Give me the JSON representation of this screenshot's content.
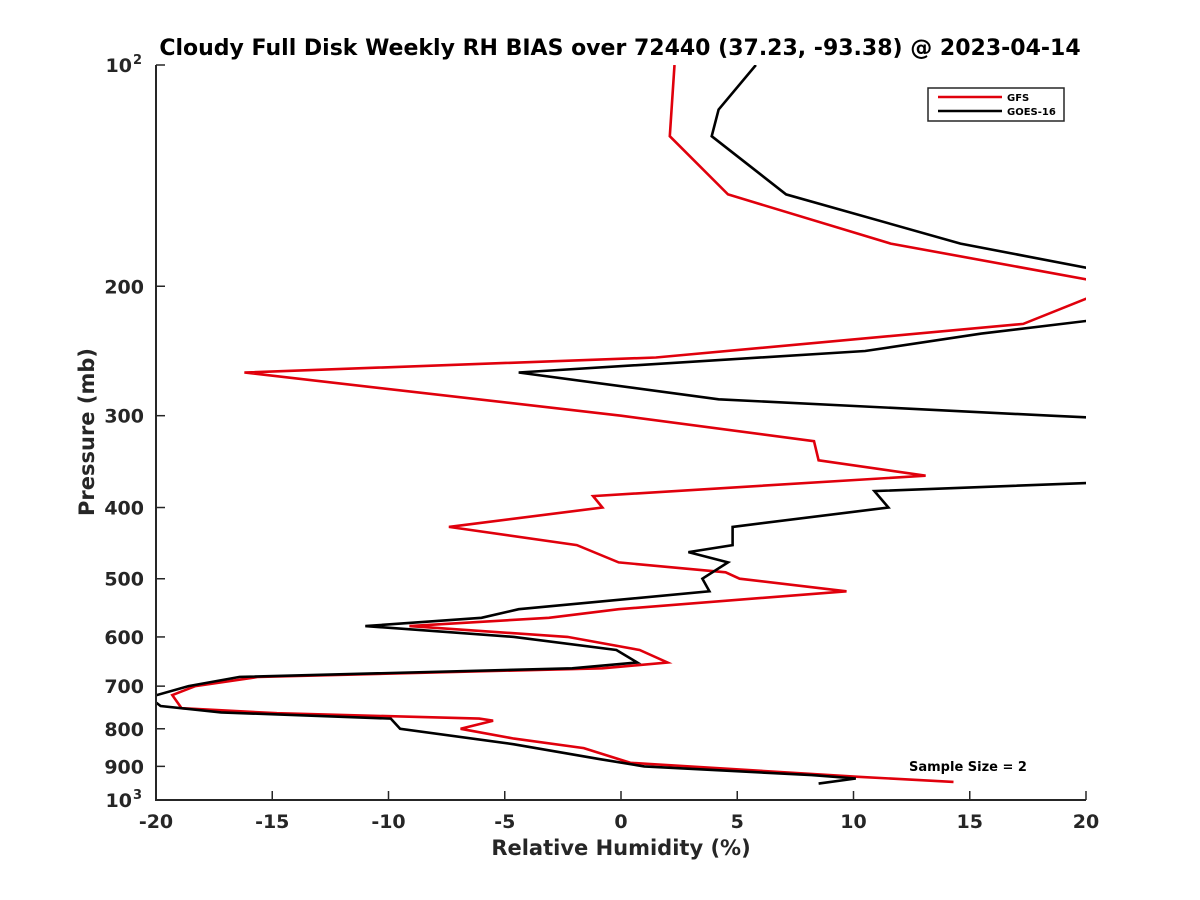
{
  "chart_data": {
    "type": "line",
    "title": "Cloudy Full Disk Weekly RH BIAS over 72440 (37.23, -93.38) @ 2023-04-14",
    "xlabel": "Relative Humidity (%)",
    "ylabel": "Pressure (mb)",
    "xlim": [
      -20,
      20
    ],
    "ylim": [
      100,
      1000
    ],
    "yscale": "log",
    "y_reversed": true,
    "grid": false,
    "legend_position": "top-right",
    "x_ticks": [
      -20,
      -15,
      -10,
      -5,
      0,
      5,
      10,
      15,
      20
    ],
    "x_tick_labels": [
      "-20",
      "-15",
      "-10",
      "-5",
      "0",
      "5",
      "10",
      "15",
      "20"
    ],
    "y_ticks": [
      100,
      200,
      300,
      400,
      500,
      600,
      700,
      800,
      900,
      1000
    ],
    "y_tick_labels": [
      {
        "base": "10",
        "exp": "2"
      },
      {
        "base": "200",
        "exp": ""
      },
      {
        "base": "300",
        "exp": ""
      },
      {
        "base": "400",
        "exp": ""
      },
      {
        "base": "500",
        "exp": ""
      },
      {
        "base": "600",
        "exp": ""
      },
      {
        "base": "700",
        "exp": ""
      },
      {
        "base": "800",
        "exp": ""
      },
      {
        "base": "900",
        "exp": ""
      },
      {
        "base": "10",
        "exp": "3"
      }
    ],
    "annotation": "Sample Size = 2",
    "series": [
      {
        "name": "GFS",
        "color": "#e0000c",
        "points": [
          [
            2.3,
            100
          ],
          [
            2.1,
            125
          ],
          [
            4.6,
            150
          ],
          [
            11.6,
            175
          ],
          [
            20.5,
            197
          ],
          [
            20.5,
            205
          ],
          [
            17.3,
            225
          ],
          [
            1.5,
            250
          ],
          [
            -16.2,
            262
          ],
          [
            0,
            300
          ],
          [
            8.3,
            325
          ],
          [
            8.5,
            345
          ],
          [
            13.1,
            362
          ],
          [
            -1.2,
            386
          ],
          [
            -0.8,
            400
          ],
          [
            -7.4,
            425
          ],
          [
            -1.9,
            450
          ],
          [
            -0.1,
            475
          ],
          [
            4.5,
            490
          ],
          [
            5.1,
            500
          ],
          [
            9.7,
            520
          ],
          [
            -0.1,
            550
          ],
          [
            -3.1,
            565
          ],
          [
            -9.1,
            580
          ],
          [
            -2.3,
            600
          ],
          [
            0.8,
            625
          ],
          [
            2.0,
            650
          ],
          [
            -0.8,
            662
          ],
          [
            -15.6,
            680
          ],
          [
            -18.3,
            700
          ],
          [
            -19.3,
            720
          ],
          [
            -18.9,
            750
          ],
          [
            -14.8,
            762
          ],
          [
            -6.1,
            775
          ],
          [
            -5.5,
            780
          ],
          [
            -6.9,
            800
          ],
          [
            -4.6,
            825
          ],
          [
            -1.6,
            850
          ],
          [
            0.4,
            890
          ],
          [
            10.2,
            930
          ],
          [
            14.3,
            945
          ]
        ]
      },
      {
        "name": "GOES-16",
        "color": "#000000",
        "points": [
          [
            5.8,
            100
          ],
          [
            4.2,
            115
          ],
          [
            3.9,
            125
          ],
          [
            7.1,
            150
          ],
          [
            14.6,
            175
          ],
          [
            20.5,
            190
          ],
          [
            20.5,
            222
          ],
          [
            15.5,
            232
          ],
          [
            10.5,
            245
          ],
          [
            -4.4,
            262
          ],
          [
            4.2,
            285
          ],
          [
            18.5,
            300
          ],
          [
            20.5,
            302
          ],
          [
            20.5,
            370
          ],
          [
            10.9,
            380
          ],
          [
            11.5,
            400
          ],
          [
            4.8,
            425
          ],
          [
            4.8,
            450
          ],
          [
            2.9,
            460
          ],
          [
            4.6,
            475
          ],
          [
            3.5,
            500
          ],
          [
            3.8,
            520
          ],
          [
            -4.4,
            550
          ],
          [
            -6.0,
            565
          ],
          [
            -11.0,
            580
          ],
          [
            -4.6,
            600
          ],
          [
            -0.2,
            625
          ],
          [
            0.7,
            650
          ],
          [
            -2.1,
            662
          ],
          [
            -16.4,
            680
          ],
          [
            -18.6,
            700
          ],
          [
            -20.3,
            725
          ],
          [
            -19.8,
            745
          ],
          [
            -17.2,
            760
          ],
          [
            -9.9,
            775
          ],
          [
            -9.5,
            800
          ],
          [
            -4.6,
            840
          ],
          [
            -0.9,
            880
          ],
          [
            1.0,
            900
          ],
          [
            8.2,
            925
          ],
          [
            10.1,
            935
          ],
          [
            8.5,
            950
          ]
        ]
      }
    ]
  }
}
